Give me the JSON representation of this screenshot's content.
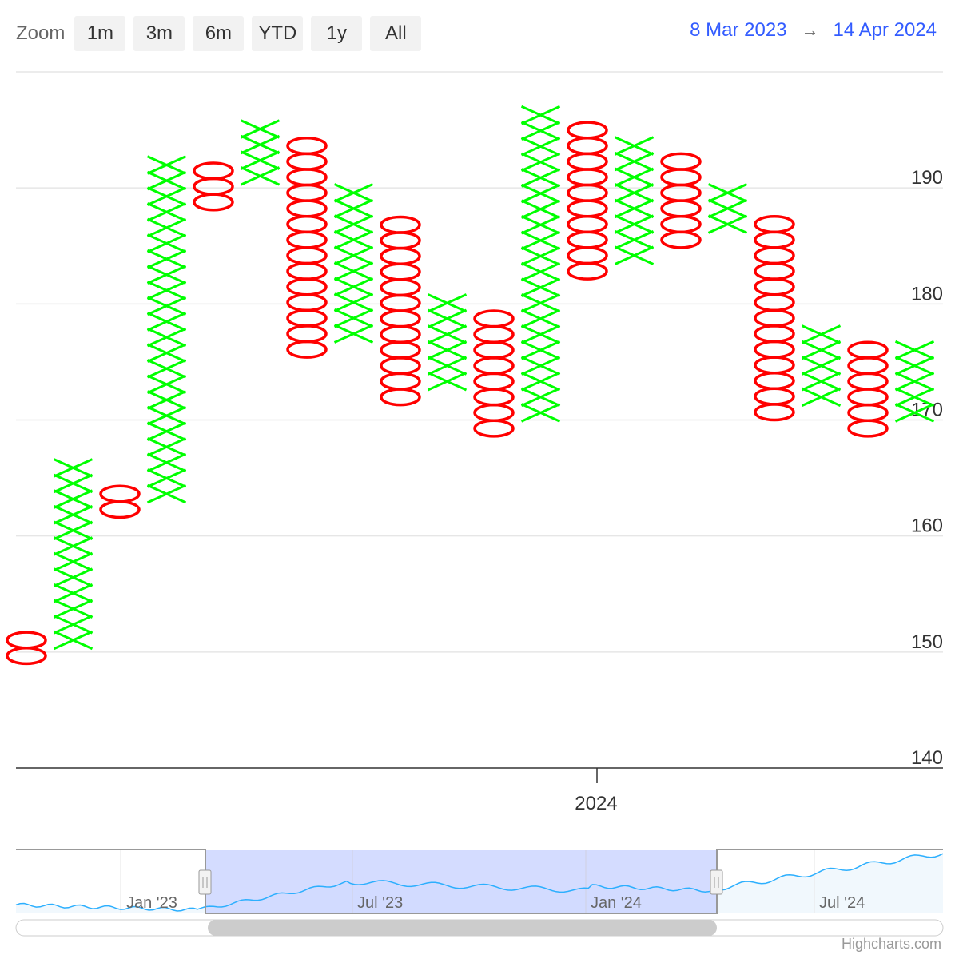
{
  "toolbar": {
    "zoom_label": "Zoom",
    "buttons": [
      "1m",
      "3m",
      "6m",
      "YTD",
      "1y",
      "All"
    ]
  },
  "range": {
    "from": "8 Mar 2023",
    "arrow": "→",
    "to": "14 Apr 2024"
  },
  "colors": {
    "up": "#00ff00",
    "down": "#ff0000",
    "grid": "#e6e6e6",
    "axis": "#333333",
    "navigator_mask": "#ccd6ff",
    "navigator_line": "#2caffe"
  },
  "chart_data": {
    "type": "point-and-figure",
    "box_size": 1.35,
    "y_axis": {
      "ticks": [
        140,
        150,
        160,
        170,
        180,
        190
      ],
      "ylim": [
        140,
        200
      ]
    },
    "x_axis": {
      "labels": [
        "2024"
      ]
    },
    "columns": [
      {
        "dir": "down",
        "low": 149,
        "high": 151.7
      },
      {
        "dir": "up",
        "low": 150.35,
        "high": 166.55
      },
      {
        "dir": "down",
        "low": 161.6,
        "high": 164.3
      },
      {
        "dir": "up",
        "low": 162.95,
        "high": 193
      },
      {
        "dir": "down",
        "low": 188.1,
        "high": 192.1
      },
      {
        "dir": "up",
        "low": 190.35,
        "high": 196.15
      },
      {
        "dir": "down",
        "low": 175.4,
        "high": 194.3
      },
      {
        "dir": "up",
        "low": 176.75,
        "high": 189.7
      },
      {
        "dir": "down",
        "low": 171.3,
        "high": 187.5
      },
      {
        "dir": "up",
        "low": 172.65,
        "high": 180.95
      },
      {
        "dir": "down",
        "low": 168.6,
        "high": 179.4
      },
      {
        "dir": "up",
        "low": 169.95,
        "high": 197.5
      },
      {
        "dir": "down",
        "low": 182.15,
        "high": 195.6
      },
      {
        "dir": "up",
        "low": 183.5,
        "high": 194.65
      },
      {
        "dir": "down",
        "low": 184.85,
        "high": 192.8
      },
      {
        "dir": "up",
        "low": 186.2,
        "high": 189.7
      },
      {
        "dir": "down",
        "low": 170,
        "high": 187.5
      },
      {
        "dir": "up",
        "low": 171.3,
        "high": 178.25
      },
      {
        "dir": "down",
        "low": 168.6,
        "high": 176.7
      },
      {
        "dir": "up",
        "low": 169.95,
        "high": 176.9
      }
    ],
    "navigator": {
      "labels": [
        "Jan '23",
        "Jul '23",
        "Jan '24",
        "Jul '24"
      ]
    }
  },
  "credits": "Highcharts.com"
}
